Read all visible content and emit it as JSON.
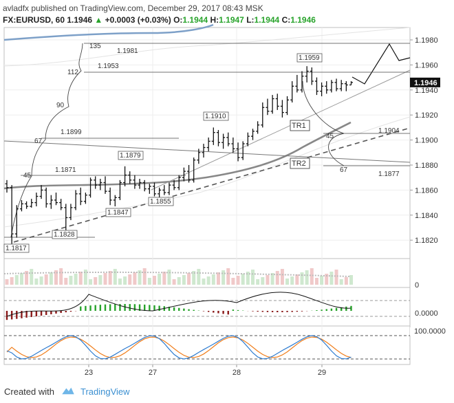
{
  "header": {
    "publisher": "avladfx",
    "published_text": "published on TradingView.com, December 29, 2017 08:43 MSK",
    "symbol": "FX:EURUSD, 60",
    "last": "1.1946",
    "change": "+0.0003 (+0.03%)",
    "o_label": "O:",
    "o_value": "1.1944",
    "h_label": "H:",
    "h_value": "1.1947",
    "l_label": "L:",
    "l_value": "1.1944",
    "c_label": "C:",
    "c_value": "1.1946"
  },
  "footer": {
    "created_with": "Created with",
    "brand": "TradingView"
  },
  "colors": {
    "up": "#28a32b",
    "down": "#8b1a1a",
    "ma": "#888888",
    "channel": "#2f6fb5",
    "stoch_k": "#2c7bd0",
    "stoch_d": "#f07d1a"
  },
  "chart_data": {
    "type": "candlestick",
    "y_axis_labels": [
      "1.1980",
      "1.1960",
      "1.1946",
      "1.1940",
      "1.1920",
      "1.1900",
      "1.1880",
      "1.1860",
      "1.1840",
      "1.1820"
    ],
    "ylim": [
      1.181,
      1.1988
    ],
    "x_tick_labels": [
      "23",
      "27",
      "28",
      "29"
    ],
    "last_price_label": "1.1946",
    "price_annotations": [
      "1.1981",
      "1.1953",
      "1.1899",
      "1.1871",
      "1.1879",
      "1.1847",
      "1.1855",
      "1.1828",
      "1.1817",
      "1.1910",
      "1.1959",
      "1.1904",
      "1.1877"
    ],
    "fib_labels": [
      "135",
      "112",
      "90",
      "67",
      "45",
      "45",
      "67"
    ],
    "trendline_labels": [
      "TR1",
      "TR2"
    ],
    "volume_axis_label": "0",
    "macd_axis_label": "0.0000",
    "stoch_axis_label": "100.0000",
    "candles": [
      [
        1.1865,
        1.1868,
        1.1858,
        1.1862
      ],
      [
        1.1862,
        1.1864,
        1.1817,
        1.1825
      ],
      [
        1.1825,
        1.1848,
        1.1822,
        1.1845
      ],
      [
        1.1845,
        1.1852,
        1.1843,
        1.1849
      ],
      [
        1.1849,
        1.1851,
        1.1845,
        1.1847
      ],
      [
        1.1847,
        1.1853,
        1.1846,
        1.185
      ],
      [
        1.185,
        1.1858,
        1.1847,
        1.1855
      ],
      [
        1.1855,
        1.1864,
        1.1853,
        1.186
      ],
      [
        1.186,
        1.1862,
        1.1846,
        1.1849
      ],
      [
        1.1849,
        1.1856,
        1.1845,
        1.1852
      ],
      [
        1.1852,
        1.1858,
        1.1848,
        1.185
      ],
      [
        1.185,
        1.1853,
        1.1844,
        1.1846
      ],
      [
        1.1846,
        1.1849,
        1.1828,
        1.1838
      ],
      [
        1.1838,
        1.1849,
        1.1836,
        1.1846
      ],
      [
        1.1846,
        1.186,
        1.1844,
        1.1857
      ],
      [
        1.1857,
        1.1862,
        1.1848,
        1.1851
      ],
      [
        1.1851,
        1.1858,
        1.1849,
        1.1856
      ],
      [
        1.1856,
        1.187,
        1.1854,
        1.1868
      ],
      [
        1.1868,
        1.1871,
        1.1861,
        1.1864
      ],
      [
        1.1864,
        1.1869,
        1.186,
        1.1866
      ],
      [
        1.1866,
        1.1871,
        1.1857,
        1.1859
      ],
      [
        1.1859,
        1.1862,
        1.1848,
        1.1852
      ],
      [
        1.1852,
        1.1856,
        1.1847,
        1.1854
      ],
      [
        1.1854,
        1.1868,
        1.1852,
        1.1866
      ],
      [
        1.1866,
        1.1879,
        1.1863,
        1.1872
      ],
      [
        1.1872,
        1.1875,
        1.1865,
        1.1868
      ],
      [
        1.1868,
        1.1872,
        1.1861,
        1.1864
      ],
      [
        1.1864,
        1.1869,
        1.1861,
        1.1866
      ],
      [
        1.1866,
        1.1868,
        1.1859,
        1.1861
      ],
      [
        1.1861,
        1.1865,
        1.1857,
        1.1863
      ],
      [
        1.1863,
        1.1866,
        1.1855,
        1.1857
      ],
      [
        1.1857,
        1.1862,
        1.1854,
        1.186
      ],
      [
        1.186,
        1.1864,
        1.1856,
        1.1858
      ],
      [
        1.1858,
        1.1866,
        1.1856,
        1.1864
      ],
      [
        1.1864,
        1.1868,
        1.186,
        1.1862
      ],
      [
        1.1862,
        1.1872,
        1.186,
        1.187
      ],
      [
        1.187,
        1.1878,
        1.1867,
        1.1875
      ],
      [
        1.1875,
        1.188,
        1.1866,
        1.1868
      ],
      [
        1.1868,
        1.1886,
        1.1866,
        1.1884
      ],
      [
        1.1884,
        1.1893,
        1.1881,
        1.189
      ],
      [
        1.189,
        1.1897,
        1.1886,
        1.1894
      ],
      [
        1.1894,
        1.1902,
        1.1891,
        1.1899
      ],
      [
        1.1899,
        1.191,
        1.1896,
        1.1906
      ],
      [
        1.1906,
        1.1908,
        1.1895,
        1.1898
      ],
      [
        1.1898,
        1.1905,
        1.1893,
        1.1902
      ],
      [
        1.1902,
        1.1906,
        1.1895,
        1.1897
      ],
      [
        1.1897,
        1.1902,
        1.189,
        1.1893
      ],
      [
        1.1893,
        1.1898,
        1.1883,
        1.1886
      ],
      [
        1.1886,
        1.1899,
        1.1884,
        1.1897
      ],
      [
        1.1897,
        1.1906,
        1.1895,
        1.1903
      ],
      [
        1.1903,
        1.1909,
        1.19,
        1.1907
      ],
      [
        1.1907,
        1.1915,
        1.1905,
        1.1912
      ],
      [
        1.1912,
        1.193,
        1.191,
        1.1926
      ],
      [
        1.1926,
        1.1933,
        1.192,
        1.1923
      ],
      [
        1.1923,
        1.1936,
        1.1921,
        1.1933
      ],
      [
        1.1933,
        1.1937,
        1.1924,
        1.1927
      ],
      [
        1.1927,
        1.1932,
        1.1918,
        1.1922
      ],
      [
        1.1922,
        1.1935,
        1.192,
        1.1932
      ],
      [
        1.1932,
        1.1947,
        1.193,
        1.1943
      ],
      [
        1.1943,
        1.1952,
        1.1938,
        1.194
      ],
      [
        1.194,
        1.1955,
        1.1938,
        1.1951
      ],
      [
        1.1951,
        1.1959,
        1.1946,
        1.1955
      ],
      [
        1.1955,
        1.1958,
        1.1944,
        1.1947
      ],
      [
        1.1947,
        1.195,
        1.1936,
        1.1939
      ],
      [
        1.1939,
        1.1946,
        1.1935,
        1.1943
      ],
      [
        1.1943,
        1.1947,
        1.1937,
        1.194
      ],
      [
        1.194,
        1.1948,
        1.1938,
        1.1946
      ],
      [
        1.1946,
        1.1949,
        1.1939,
        1.1941
      ],
      [
        1.1941,
        1.1948,
        1.1939,
        1.1945
      ],
      [
        1.1945,
        1.1947,
        1.1939,
        1.1944
      ],
      [
        1.1944,
        1.1947,
        1.1944,
        1.1946
      ]
    ]
  }
}
